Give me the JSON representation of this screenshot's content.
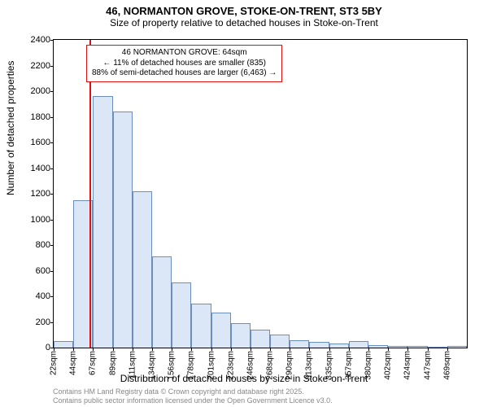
{
  "title": "46, NORMANTON GROVE, STOKE-ON-TRENT, ST3 5BY",
  "subtitle": "Size of property relative to detached houses in Stoke-on-Trent",
  "ylabel": "Number of detached properties",
  "xlabel": "Distribution of detached houses by size in Stoke-on-Trent",
  "attribution_line1": "Contains HM Land Registry data © Crown copyright and database right 2025.",
  "attribution_line2": "Contains public sector information licensed under the Open Government Licence v3.0.",
  "chart": {
    "type": "histogram",
    "ylim": [
      0,
      2400
    ],
    "ytick_step": 200,
    "bar_fill": "#dbe7f6",
    "bar_stroke": "#6a8fbf",
    "background": "#ffffff",
    "x_start": 22,
    "x_bin_width": 22.4,
    "x_labels": [
      "22sqm",
      "44sqm",
      "67sqm",
      "89sqm",
      "111sqm",
      "134sqm",
      "156sqm",
      "178sqm",
      "201sqm",
      "223sqm",
      "246sqm",
      "268sqm",
      "290sqm",
      "313sqm",
      "335sqm",
      "357sqm",
      "380sqm",
      "402sqm",
      "424sqm",
      "447sqm",
      "469sqm"
    ],
    "values": [
      50,
      1150,
      1960,
      1840,
      1220,
      710,
      510,
      340,
      270,
      190,
      140,
      100,
      60,
      45,
      35,
      50,
      20,
      15,
      10,
      8,
      10
    ],
    "marker": {
      "position_sqm": 64,
      "color": "#d11"
    },
    "info_box": {
      "border_color": "#d11",
      "line1": "46 NORMANTON GROVE: 64sqm",
      "line2": "← 11% of detached houses are smaller (835)",
      "line3": "88% of semi-detached houses are larger (6,463) →"
    }
  }
}
